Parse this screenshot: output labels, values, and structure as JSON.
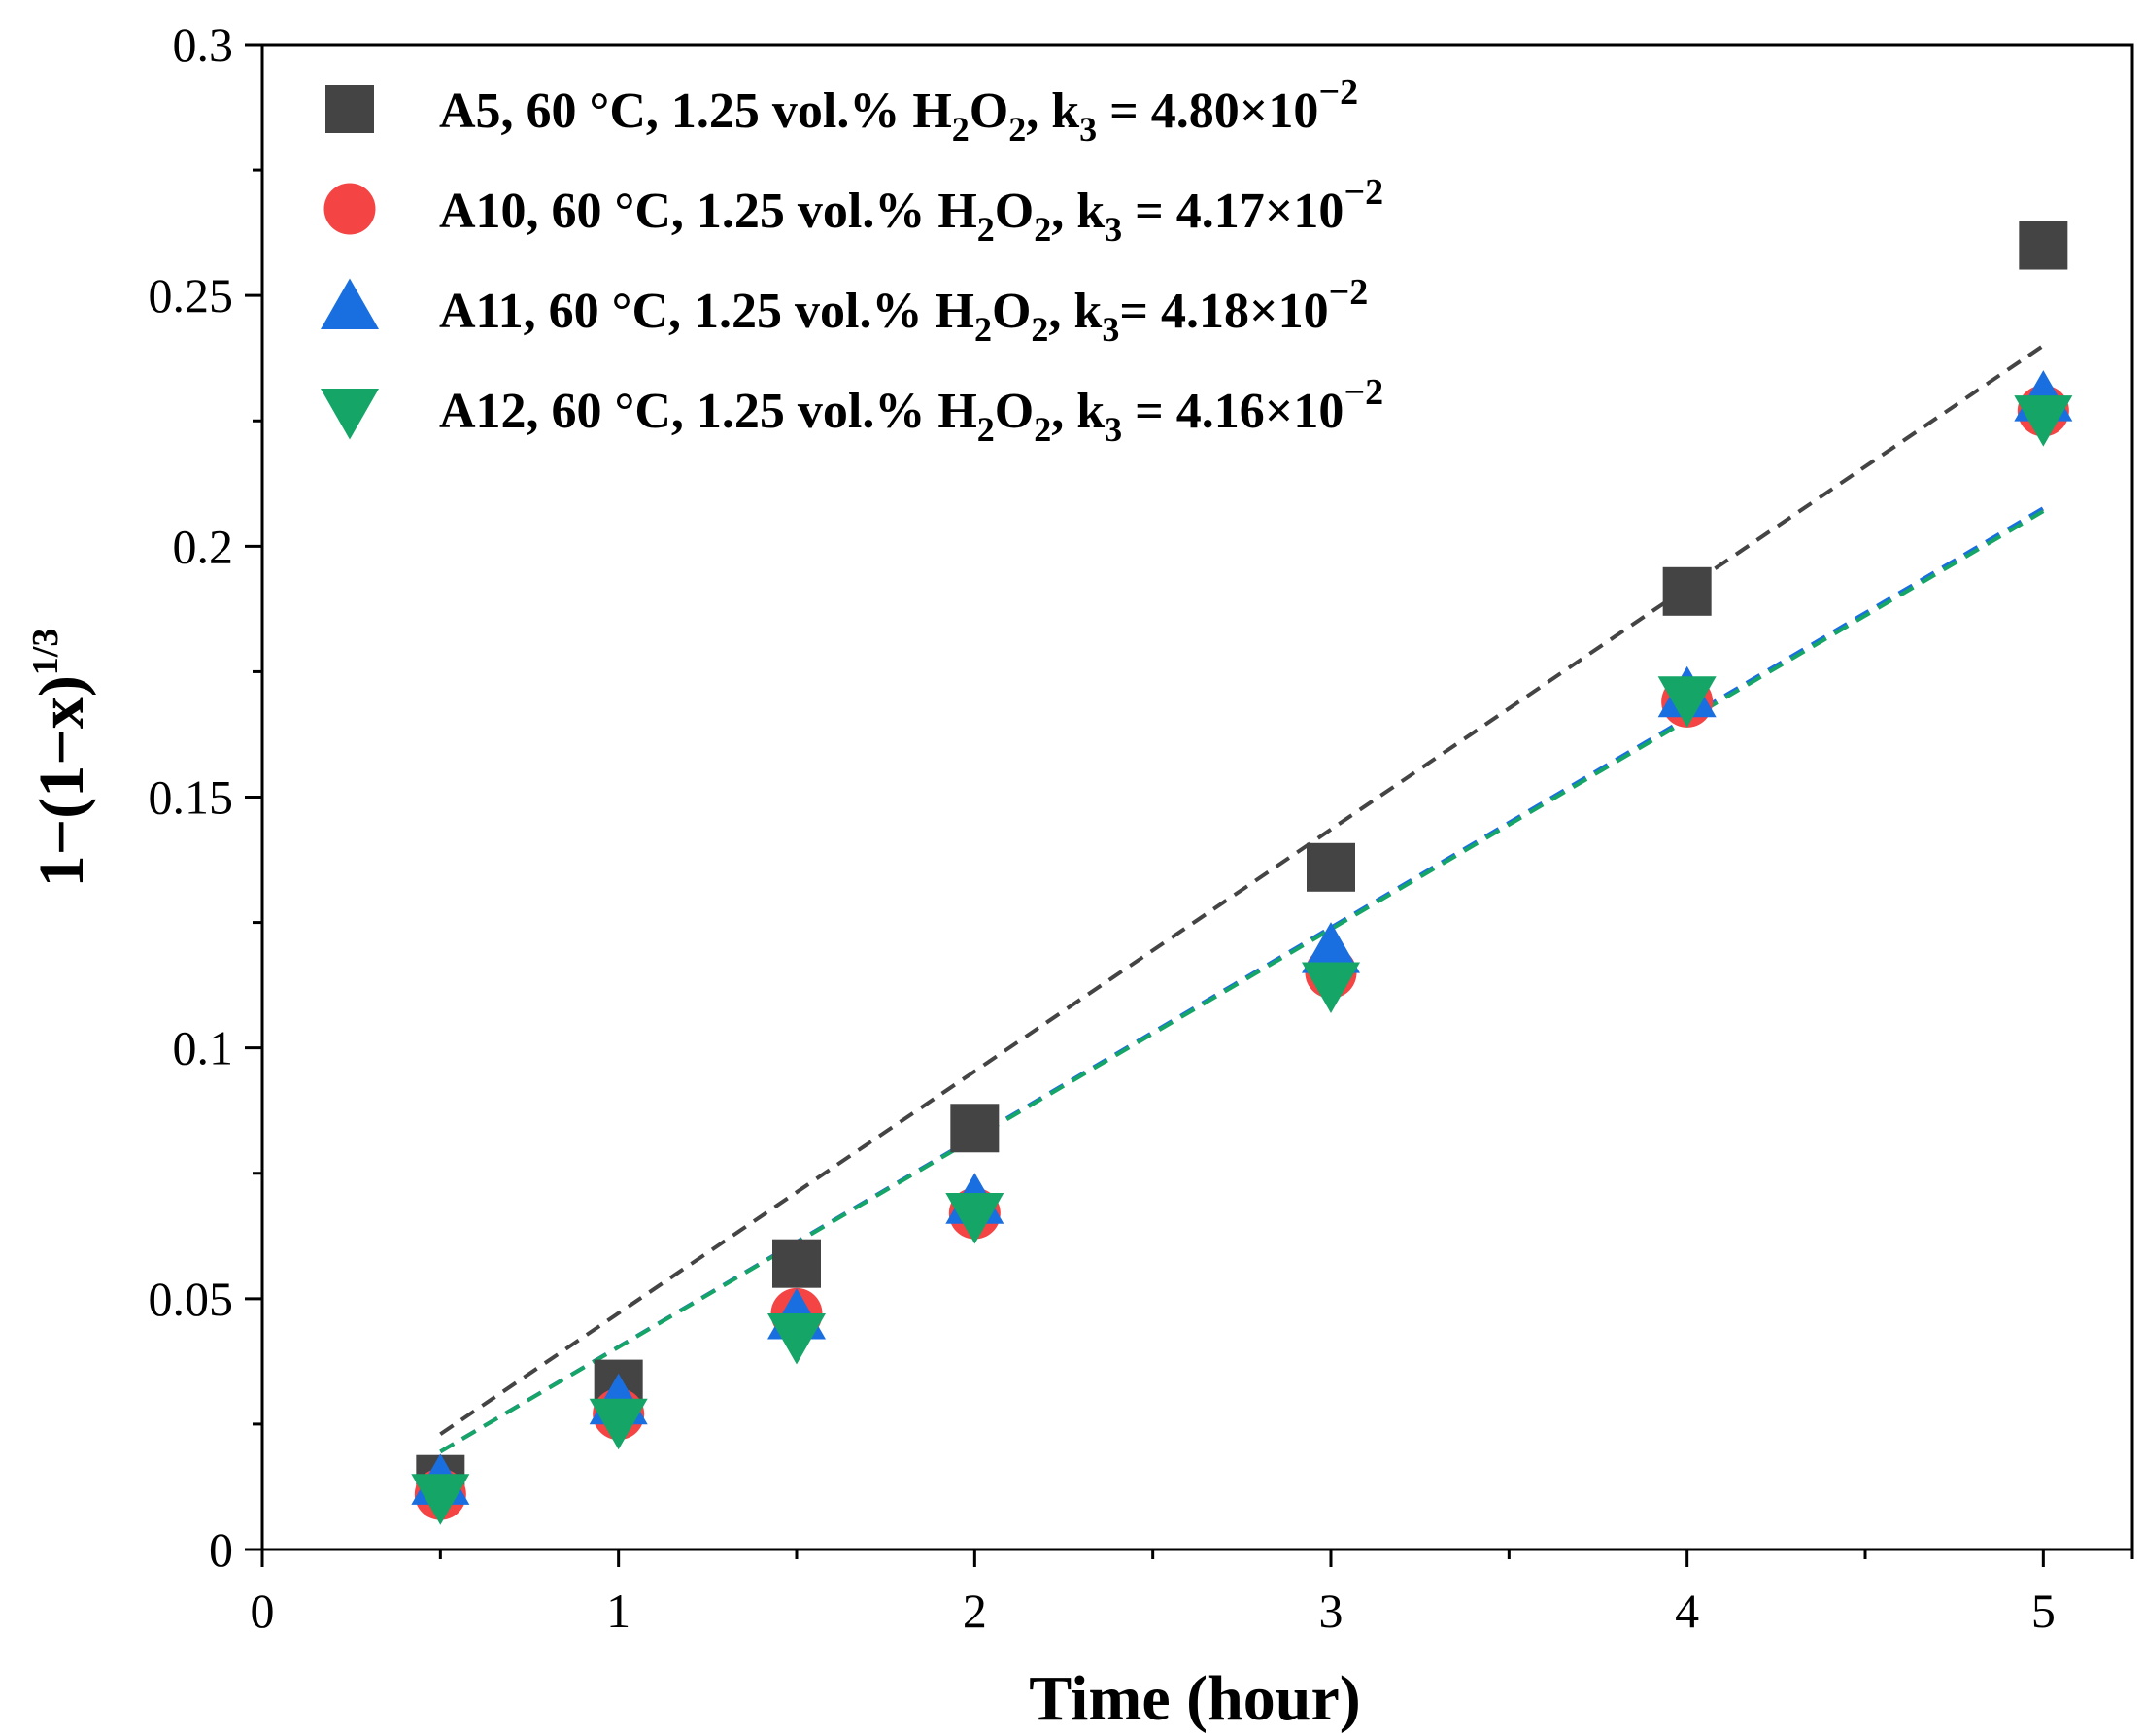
{
  "chart_data": {
    "type": "scatter",
    "xlabel": "Time (hour)",
    "ylabel": {
      "main": "1−(1−x)",
      "sup": "1/3"
    },
    "xlim": [
      0,
      5.25
    ],
    "ylim": [
      0,
      0.3
    ],
    "xticks": [
      0,
      1,
      2,
      3,
      4,
      5
    ],
    "xtick_labels": [
      "0",
      "1",
      "2",
      "3",
      "4",
      "5"
    ],
    "yticks": [
      0,
      0.05,
      0.1,
      0.15,
      0.2,
      0.25,
      0.3
    ],
    "ytick_labels": [
      "0",
      "0.05",
      "0.1",
      "0.15",
      "0.2",
      "0.25",
      "0.3"
    ],
    "legend_position": "top-left",
    "series": [
      {
        "name": "A5",
        "marker": "square",
        "color": "#444444",
        "fit_color": "#444444",
        "x": [
          0.5,
          1,
          1.5,
          2,
          3,
          4,
          5
        ],
        "y": [
          0.014,
          0.033,
          0.057,
          0.084,
          0.136,
          0.191,
          0.26
        ],
        "fit": {
          "x": [
            0.5,
            5
          ],
          "y": [
            0.023,
            0.24
          ]
        },
        "legend": {
          "prefix": "A5, 60 °C, 1.25 vol.% H",
          "sub1": "2",
          "mid": "O",
          "sub2": "2",
          "k": ", k",
          "ksub": "3",
          "eq": " = 4.80×10",
          "exp": "−2"
        }
      },
      {
        "name": "A10",
        "marker": "circle",
        "color": "#f44444",
        "fit_color": "#e85a5a",
        "x": [
          0.5,
          1,
          1.5,
          2,
          3,
          4,
          5
        ],
        "y": [
          0.011,
          0.027,
          0.047,
          0.067,
          0.115,
          0.169,
          0.227
        ],
        "fit": {
          "x": [
            0.5,
            5
          ],
          "y": [
            0.0195,
            0.2075
          ]
        },
        "legend": {
          "prefix": "A10, 60 °C, 1.25 vol.% H",
          "sub1": "2",
          "mid": "O",
          "sub2": "2",
          "k": ", k",
          "ksub": "3",
          "eq": " = 4.17×10",
          "exp": "−2"
        }
      },
      {
        "name": "A11",
        "marker": "triangle-up",
        "color": "#1a6fe0",
        "fit_color": "#1a6fe0",
        "x": [
          0.5,
          1,
          1.5,
          2,
          3,
          4,
          5
        ],
        "y": [
          0.013,
          0.029,
          0.046,
          0.069,
          0.119,
          0.17,
          0.229
        ],
        "fit": {
          "x": [
            0.5,
            5
          ],
          "y": [
            0.0195,
            0.2076
          ]
        },
        "legend": {
          "prefix": "A11, 60 °C, 1.25 vol.% H",
          "sub1": "2",
          "mid": "O",
          "sub2": "2",
          "k": ", k",
          "ksub": "3",
          "eq": "= 4.18×10",
          "exp": "−2"
        }
      },
      {
        "name": "A12",
        "marker": "triangle-down",
        "color": "#15a567",
        "fit_color": "#15a567",
        "x": [
          0.5,
          1,
          1.5,
          2,
          3,
          4,
          5
        ],
        "y": [
          0.011,
          0.026,
          0.043,
          0.067,
          0.113,
          0.17,
          0.226
        ],
        "fit": {
          "x": [
            0.5,
            5
          ],
          "y": [
            0.0195,
            0.207
          ]
        },
        "legend": {
          "prefix": "A12, 60 °C, 1.25 vol.% H",
          "sub1": "2",
          "mid": "O",
          "sub2": "2",
          "k": ", k",
          "ksub": "3",
          "eq": " = 4.16×10",
          "exp": "−2"
        }
      }
    ]
  }
}
